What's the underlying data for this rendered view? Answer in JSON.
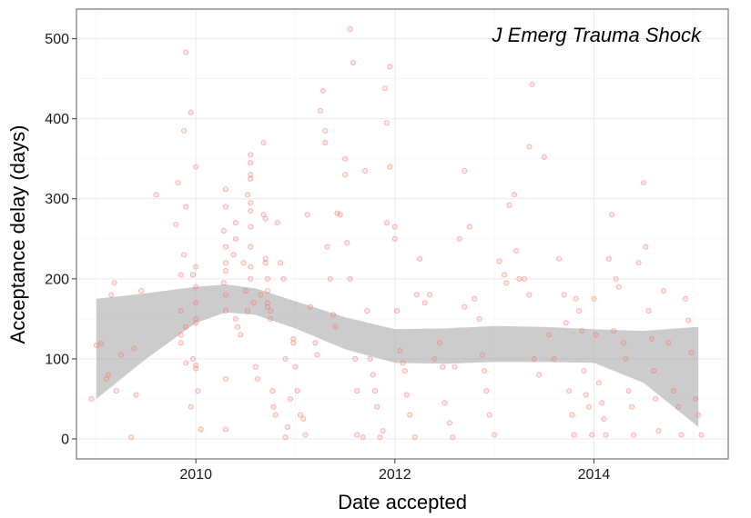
{
  "chart_data": {
    "type": "scatter",
    "title": "",
    "annotation": "J Emerg Trauma Shock",
    "xlabel": "Date accepted",
    "ylabel": "Acceptance delay (days)",
    "xlim": [
      2008.8,
      2015.35
    ],
    "ylim": [
      -25,
      537
    ],
    "x_ticks": [
      2010,
      2012,
      2014
    ],
    "x_tick_labels": [
      "2010",
      "2012",
      "2014"
    ],
    "y_ticks": [
      0,
      100,
      200,
      300,
      400,
      500
    ],
    "y_tick_labels": [
      "0",
      "100",
      "200",
      "300",
      "400",
      "500"
    ],
    "grid": true,
    "legend": "none",
    "colors": {
      "points": "#F8766D",
      "band": "#999999",
      "panel_border": "#808080",
      "grid": "#ebebeb"
    },
    "smooth_band": {
      "x": [
        2009.0,
        2009.5,
        2010.0,
        2010.3,
        2010.6,
        2011.0,
        2011.5,
        2012.0,
        2012.5,
        2013.0,
        2013.5,
        2014.0,
        2014.5,
        2015.05
      ],
      "upper": [
        175,
        182,
        190,
        193,
        188,
        172,
        152,
        137,
        138,
        141,
        140,
        137,
        135,
        140
      ],
      "lower": [
        50,
        100,
        145,
        158,
        155,
        138,
        112,
        95,
        94,
        96,
        96,
        95,
        70,
        15
      ]
    },
    "points": [
      [
        2008.95,
        50
      ],
      [
        2009.0,
        117
      ],
      [
        2009.05,
        119
      ],
      [
        2009.1,
        75
      ],
      [
        2009.12,
        80
      ],
      [
        2009.15,
        180
      ],
      [
        2009.18,
        195
      ],
      [
        2009.2,
        60
      ],
      [
        2009.25,
        105
      ],
      [
        2009.35,
        2
      ],
      [
        2009.38,
        113
      ],
      [
        2009.4,
        55
      ],
      [
        2009.45,
        185
      ],
      [
        2009.6,
        305
      ],
      [
        2009.85,
        130
      ],
      [
        2009.8,
        268
      ],
      [
        2009.82,
        320
      ],
      [
        2009.85,
        205
      ],
      [
        2009.88,
        385
      ],
      [
        2009.9,
        483
      ],
      [
        2009.95,
        408
      ],
      [
        2009.85,
        160
      ],
      [
        2009.9,
        140
      ],
      [
        2009.85,
        120
      ],
      [
        2009.9,
        95
      ],
      [
        2009.95,
        40
      ],
      [
        2009.88,
        230
      ],
      [
        2009.9,
        290
      ],
      [
        2010.0,
        340
      ],
      [
        2010.0,
        190
      ],
      [
        2010.0,
        170
      ],
      [
        2010.0,
        92
      ],
      [
        2010.0,
        88
      ],
      [
        2010.02,
        60
      ],
      [
        2010.05,
        12
      ],
      [
        2010.0,
        145
      ],
      [
        2010.0,
        150
      ],
      [
        2009.97,
        205
      ],
      [
        2010.0,
        215
      ],
      [
        2009.97,
        100
      ],
      [
        2010.3,
        312
      ],
      [
        2010.3,
        290
      ],
      [
        2010.28,
        260
      ],
      [
        2010.3,
        240
      ],
      [
        2010.3,
        220
      ],
      [
        2010.3,
        210
      ],
      [
        2010.28,
        195
      ],
      [
        2010.3,
        180
      ],
      [
        2010.3,
        160
      ],
      [
        2010.3,
        12
      ],
      [
        2010.3,
        75
      ],
      [
        2010.38,
        230
      ],
      [
        2010.4,
        250
      ],
      [
        2010.4,
        270
      ],
      [
        2010.4,
        150
      ],
      [
        2010.42,
        140
      ],
      [
        2010.45,
        130
      ],
      [
        2010.48,
        220
      ],
      [
        2010.5,
        185
      ],
      [
        2010.52,
        305
      ],
      [
        2010.52,
        160
      ],
      [
        2010.55,
        355
      ],
      [
        2010.55,
        345
      ],
      [
        2010.55,
        330
      ],
      [
        2010.55,
        325
      ],
      [
        2010.55,
        295
      ],
      [
        2010.55,
        285
      ],
      [
        2010.55,
        265
      ],
      [
        2010.55,
        240
      ],
      [
        2010.55,
        215
      ],
      [
        2010.55,
        200
      ],
      [
        2010.58,
        170
      ],
      [
        2010.6,
        90
      ],
      [
        2010.62,
        75
      ],
      [
        2010.65,
        180
      ],
      [
        2010.68,
        370
      ],
      [
        2010.68,
        280
      ],
      [
        2010.7,
        275
      ],
      [
        2010.7,
        225
      ],
      [
        2010.7,
        220
      ],
      [
        2010.72,
        200
      ],
      [
        2010.72,
        185
      ],
      [
        2010.72,
        170
      ],
      [
        2010.72,
        165
      ],
      [
        2010.75,
        160
      ],
      [
        2010.75,
        150
      ],
      [
        2010.77,
        60
      ],
      [
        2010.78,
        40
      ],
      [
        2010.8,
        30
      ],
      [
        2010.82,
        270
      ],
      [
        2010.85,
        220
      ],
      [
        2010.88,
        200
      ],
      [
        2010.9,
        100
      ],
      [
        2010.9,
        2
      ],
      [
        2010.92,
        15
      ],
      [
        2010.95,
        50
      ],
      [
        2010.98,
        120
      ],
      [
        2010.98,
        125
      ],
      [
        2011.0,
        90
      ],
      [
        2011.02,
        60
      ],
      [
        2011.05,
        30
      ],
      [
        2011.08,
        25
      ],
      [
        2011.1,
        5
      ],
      [
        2011.12,
        280
      ],
      [
        2011.15,
        165
      ],
      [
        2011.2,
        120
      ],
      [
        2011.22,
        105
      ],
      [
        2011.25,
        410
      ],
      [
        2011.28,
        435
      ],
      [
        2011.3,
        385
      ],
      [
        2011.3,
        370
      ],
      [
        2011.32,
        240
      ],
      [
        2011.35,
        200
      ],
      [
        2011.38,
        155
      ],
      [
        2011.4,
        140
      ],
      [
        2011.42,
        282
      ],
      [
        2011.45,
        280
      ],
      [
        2011.5,
        350
      ],
      [
        2011.5,
        330
      ],
      [
        2011.52,
        245
      ],
      [
        2011.55,
        200
      ],
      [
        2011.55,
        512
      ],
      [
        2011.58,
        470
      ],
      [
        2011.6,
        100
      ],
      [
        2011.62,
        60
      ],
      [
        2011.62,
        5
      ],
      [
        2011.68,
        2
      ],
      [
        2011.7,
        335
      ],
      [
        2011.72,
        160
      ],
      [
        2011.75,
        100
      ],
      [
        2011.78,
        80
      ],
      [
        2011.8,
        60
      ],
      [
        2011.82,
        40
      ],
      [
        2011.85,
        2
      ],
      [
        2011.88,
        10
      ],
      [
        2011.9,
        438
      ],
      [
        2011.92,
        270
      ],
      [
        2011.92,
        395
      ],
      [
        2011.95,
        465
      ],
      [
        2011.95,
        340
      ],
      [
        2012.0,
        265
      ],
      [
        2012.0,
        250
      ],
      [
        2012.02,
        160
      ],
      [
        2012.05,
        110
      ],
      [
        2012.08,
        95
      ],
      [
        2012.1,
        85
      ],
      [
        2012.12,
        55
      ],
      [
        2012.15,
        30
      ],
      [
        2012.2,
        2
      ],
      [
        2012.22,
        180
      ],
      [
        2012.25,
        225
      ],
      [
        2012.3,
        170
      ],
      [
        2012.35,
        180
      ],
      [
        2012.4,
        100
      ],
      [
        2012.45,
        120
      ],
      [
        2012.48,
        90
      ],
      [
        2012.5,
        45
      ],
      [
        2012.55,
        20
      ],
      [
        2012.58,
        2
      ],
      [
        2012.6,
        90
      ],
      [
        2012.65,
        250
      ],
      [
        2012.7,
        165
      ],
      [
        2012.7,
        335
      ],
      [
        2012.75,
        265
      ],
      [
        2012.8,
        175
      ],
      [
        2012.85,
        150
      ],
      [
        2012.88,
        105
      ],
      [
        2012.9,
        85
      ],
      [
        2012.92,
        60
      ],
      [
        2012.95,
        30
      ],
      [
        2013.0,
        5
      ],
      [
        2013.05,
        222
      ],
      [
        2013.1,
        205
      ],
      [
        2013.12,
        195
      ],
      [
        2013.15,
        292
      ],
      [
        2013.2,
        305
      ],
      [
        2013.22,
        235
      ],
      [
        2013.25,
        200
      ],
      [
        2013.3,
        200
      ],
      [
        2013.35,
        180
      ],
      [
        2013.35,
        365
      ],
      [
        2013.38,
        443
      ],
      [
        2013.4,
        100
      ],
      [
        2013.45,
        80
      ],
      [
        2013.5,
        352
      ],
      [
        2013.55,
        130
      ],
      [
        2013.6,
        100
      ],
      [
        2013.65,
        225
      ],
      [
        2013.7,
        180
      ],
      [
        2013.72,
        145
      ],
      [
        2013.75,
        60
      ],
      [
        2013.78,
        30
      ],
      [
        2013.8,
        5
      ],
      [
        2013.82,
        175
      ],
      [
        2013.85,
        160
      ],
      [
        2013.88,
        135
      ],
      [
        2013.9,
        85
      ],
      [
        2013.92,
        55
      ],
      [
        2013.95,
        40
      ],
      [
        2013.98,
        5
      ],
      [
        2014.0,
        175
      ],
      [
        2014.02,
        130
      ],
      [
        2014.05,
        70
      ],
      [
        2014.08,
        45
      ],
      [
        2014.1,
        25
      ],
      [
        2014.12,
        5
      ],
      [
        2014.15,
        225
      ],
      [
        2014.18,
        280
      ],
      [
        2014.2,
        135
      ],
      [
        2014.22,
        200
      ],
      [
        2014.25,
        190
      ],
      [
        2014.3,
        120
      ],
      [
        2014.32,
        100
      ],
      [
        2014.35,
        60
      ],
      [
        2014.38,
        40
      ],
      [
        2014.4,
        5
      ],
      [
        2014.45,
        220
      ],
      [
        2014.5,
        320
      ],
      [
        2014.52,
        240
      ],
      [
        2014.55,
        160
      ],
      [
        2014.58,
        125
      ],
      [
        2014.6,
        85
      ],
      [
        2014.62,
        50
      ],
      [
        2014.65,
        10
      ],
      [
        2014.7,
        185
      ],
      [
        2014.75,
        120
      ],
      [
        2014.8,
        60
      ],
      [
        2014.85,
        40
      ],
      [
        2014.88,
        5
      ],
      [
        2014.92,
        175
      ],
      [
        2014.95,
        148
      ],
      [
        2014.98,
        108
      ],
      [
        2015.02,
        50
      ],
      [
        2015.05,
        30
      ],
      [
        2015.08,
        5
      ]
    ]
  }
}
